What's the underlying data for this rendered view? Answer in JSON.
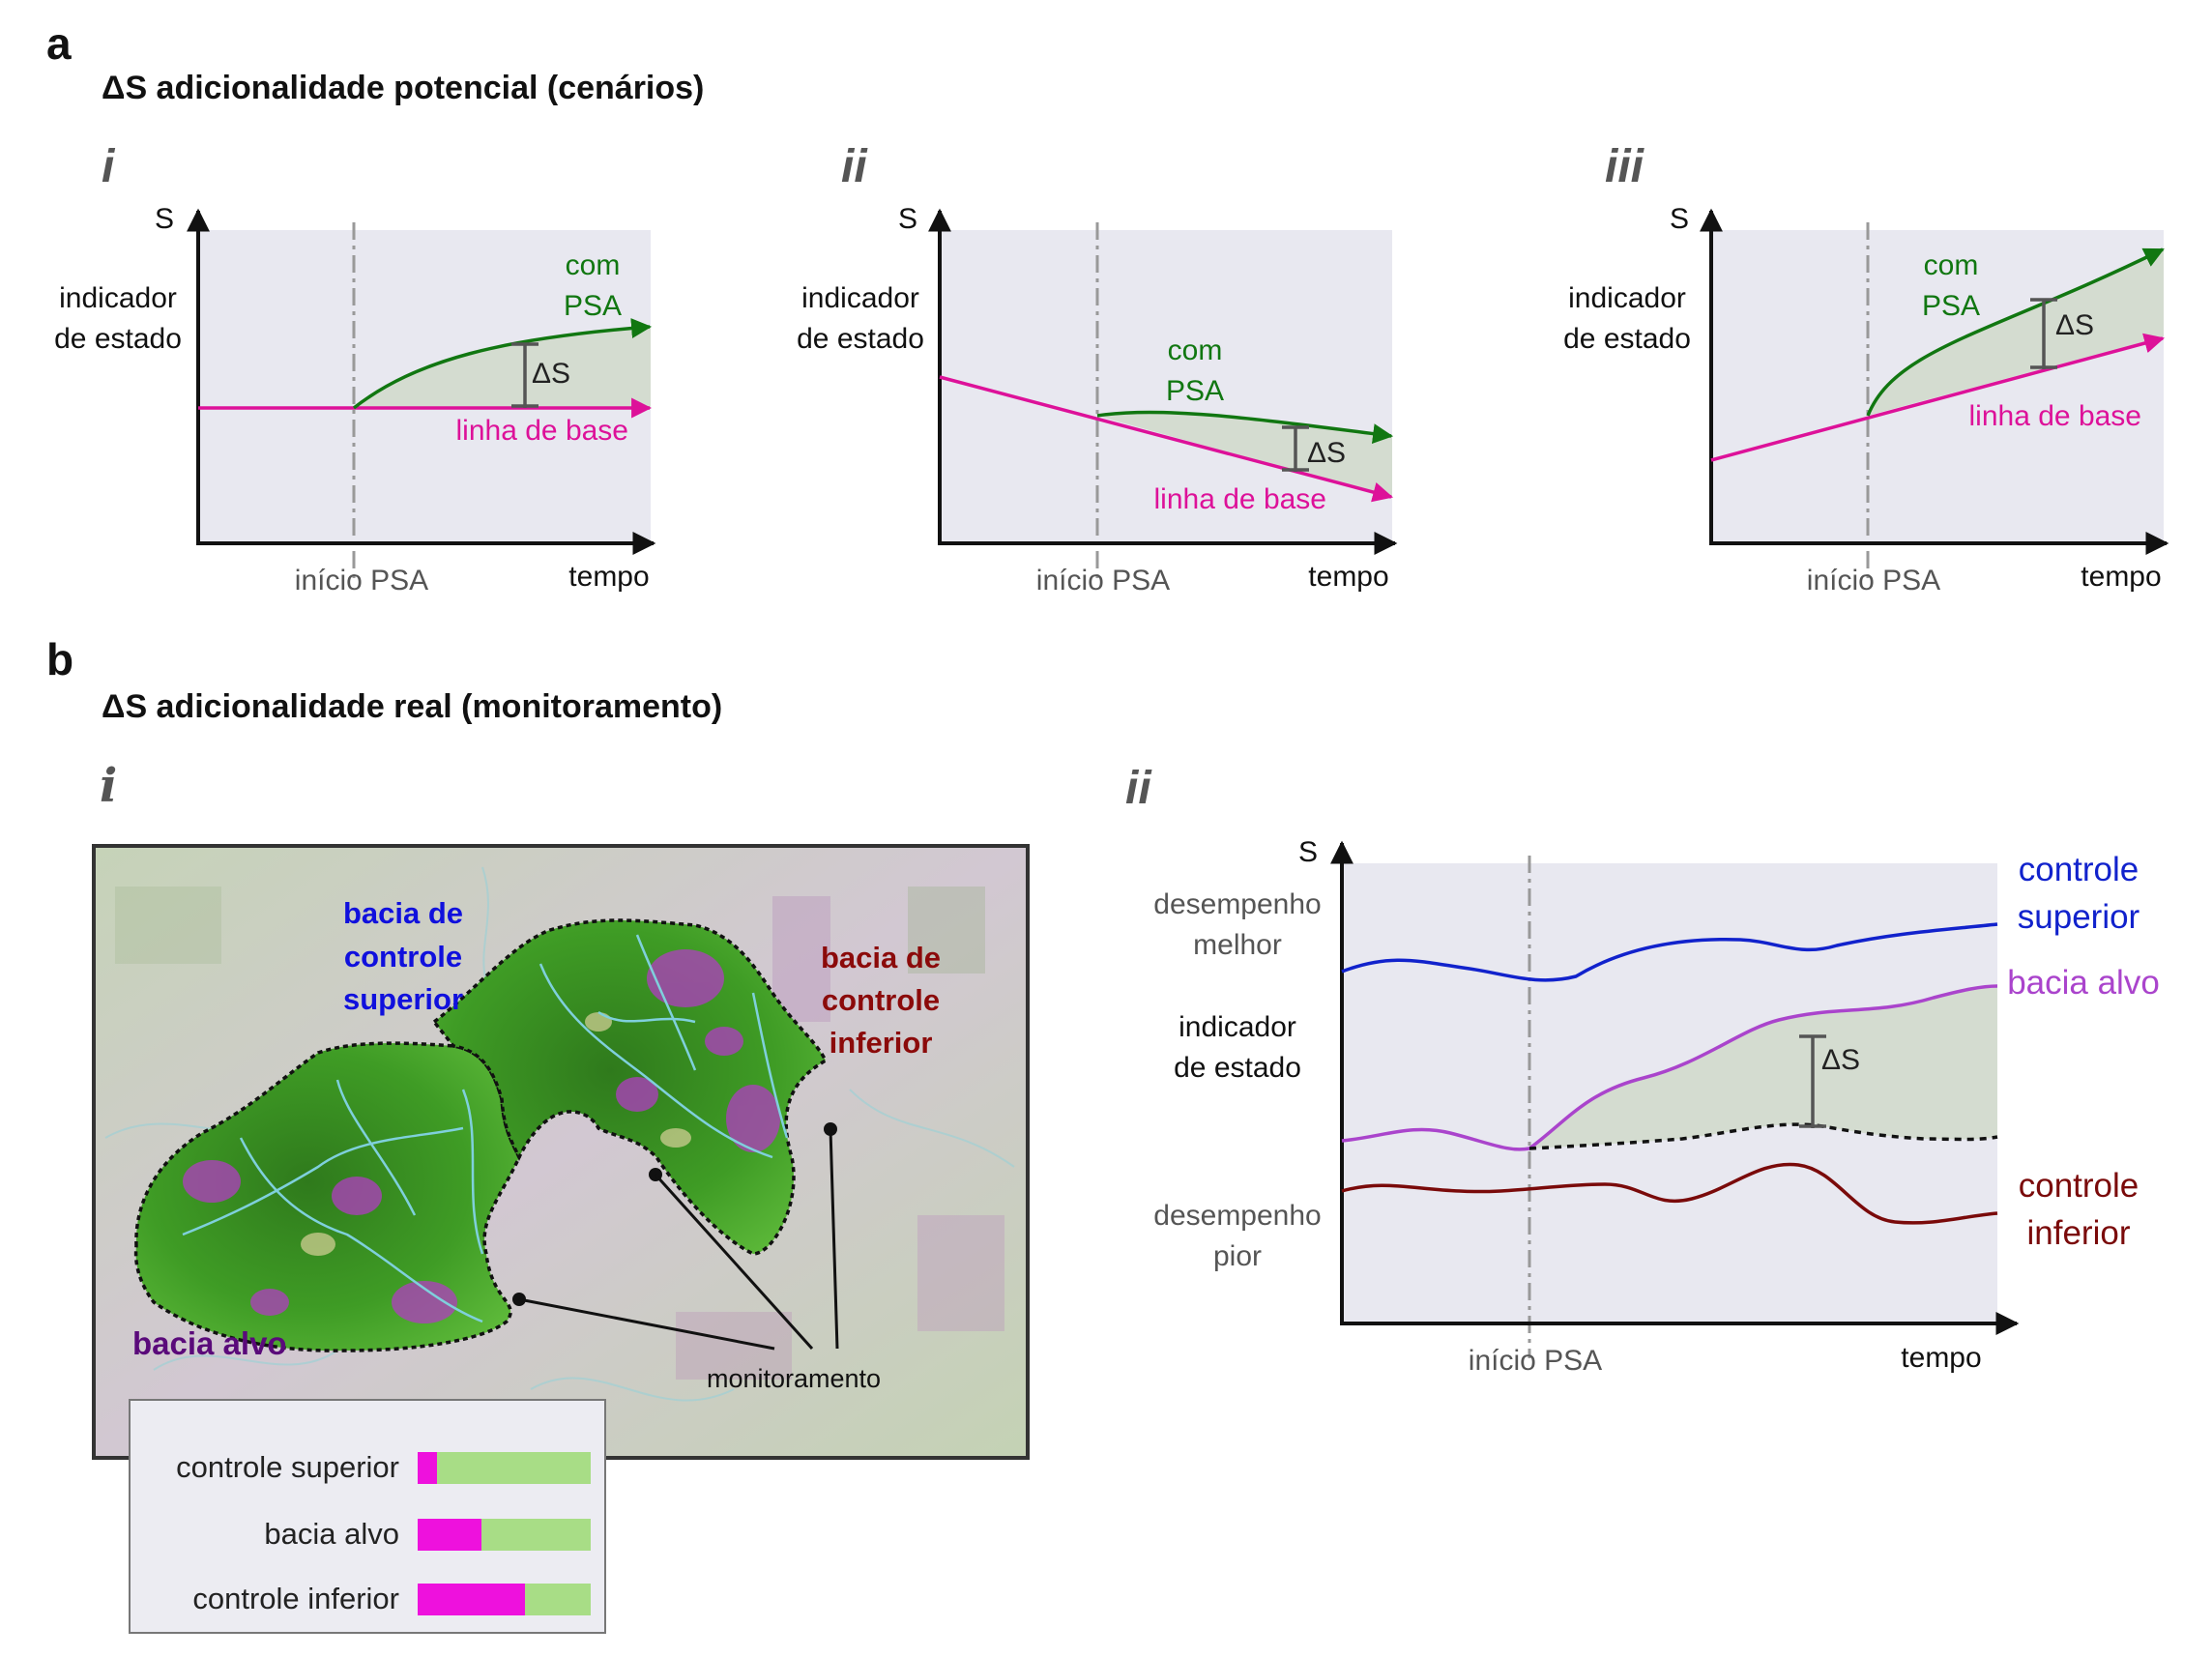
{
  "panel_a": {
    "letter": "a",
    "title": "ΔS adicionalidade potencial (cenários)",
    "scenarios": [
      {
        "numeral": "i",
        "s_label": "S",
        "y_label_1": "indicador",
        "y_label_2": "de estado",
        "with_label_1": "com",
        "with_label_2": "PSA",
        "baseline_label": "linha de base",
        "delta_label": "ΔS",
        "start_label": "início PSA",
        "x_label": "tempo"
      },
      {
        "numeral": "ii",
        "s_label": "S",
        "y_label_1": "indicador",
        "y_label_2": "de estado",
        "with_label_1": "com",
        "with_label_2": "PSA",
        "baseline_label": "linha de base",
        "delta_label": "ΔS",
        "start_label": "início PSA",
        "x_label": "tempo"
      },
      {
        "numeral": "iii",
        "s_label": "S",
        "y_label_1": "indicador",
        "y_label_2": "de estado",
        "with_label_1": "com",
        "with_label_2": "PSA",
        "baseline_label": "linha de base",
        "delta_label": "ΔS",
        "start_label": "início PSA",
        "x_label": "tempo"
      }
    ]
  },
  "panel_b": {
    "letter": "b",
    "title": "ΔS adicionalidade real (monitoramento)",
    "map": {
      "numeral": "i",
      "upper_control_label_1": "bacia de",
      "upper_control_label_2": "controle",
      "upper_control_label_3": "superior",
      "lower_control_label_1": "bacia de",
      "lower_control_label_2": "controle",
      "lower_control_label_3": "inferior",
      "target_label": "bacia alvo",
      "monitoring_label": "monitoramento",
      "colors": {
        "upper": "#1010dd",
        "lower": "#8b0a0a",
        "target": "#5a0a7a"
      }
    },
    "legend": [
      {
        "label": "controle superior",
        "share": 0.11
      },
      {
        "label": "bacia alvo",
        "share": 0.37
      },
      {
        "label": "controle inferior",
        "share": 0.62
      }
    ],
    "plot": {
      "numeral": "ii",
      "s_label": "S",
      "better_1": "desempenho",
      "better_2": "melhor",
      "y_label_1": "indicador",
      "y_label_2": "de estado",
      "worse_1": "desempenho",
      "worse_2": "pior",
      "start_label": "início PSA",
      "x_label": "tempo",
      "delta_label": "ΔS",
      "upper_label_1": "controle",
      "upper_label_2": "superior",
      "target_label": "bacia alvo",
      "lower_label_1": "controle",
      "lower_label_2": "inferior"
    }
  },
  "colors": {
    "plot_bg": "#e8e8f0",
    "with_psa": "#117711",
    "baseline": "#dd1199",
    "upper_control": "#1122cc",
    "target": "#aa44cc",
    "lower_control": "#7a0a0a",
    "delta_fill": "#d4dcd0",
    "start_line": "#999999"
  }
}
